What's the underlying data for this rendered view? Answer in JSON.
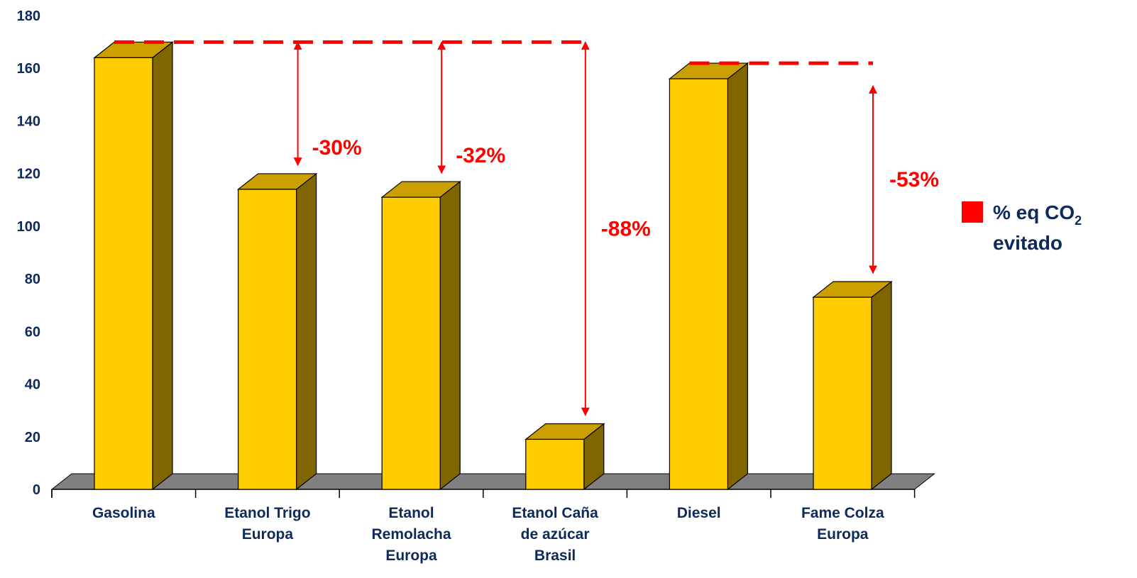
{
  "chart_data": {
    "type": "bar",
    "title": "",
    "xlabel": "",
    "ylabel": "",
    "ylim": [
      0,
      180
    ],
    "yticks": [
      0,
      20,
      40,
      60,
      80,
      100,
      120,
      140,
      160,
      180
    ],
    "grid": false,
    "categories": [
      [
        "Gasolina"
      ],
      [
        "Etanol Trigo",
        "Europa"
      ],
      [
        "Etanol",
        "Remolacha",
        "Europa"
      ],
      [
        "Etanol Caña",
        "de azúcar",
        "Brasil"
      ],
      [
        "Diesel"
      ],
      [
        "Fame Colza",
        "Europa"
      ]
    ],
    "values": [
      164,
      114,
      111,
      19,
      156,
      73
    ],
    "annotations": [
      {
        "text": "-30%",
        "ref": 0,
        "target": 1
      },
      {
        "text": "-32%",
        "ref": 0,
        "target": 2
      },
      {
        "text": "-88%",
        "ref": 0,
        "target": 3
      },
      {
        "text": "-53%",
        "ref": 4,
        "target": 5
      }
    ],
    "legend": {
      "label": "% eq CO",
      "subscript": "2",
      "line2": "evitado",
      "position": "right",
      "color": "#ff0000"
    },
    "colors": {
      "bar_front": "#ffcc00",
      "bar_top": "#cc9f00",
      "bar_side": "#806600",
      "floor": "#808080",
      "axis_text": "#0d2a5c",
      "annotation": "#ff0000"
    }
  }
}
